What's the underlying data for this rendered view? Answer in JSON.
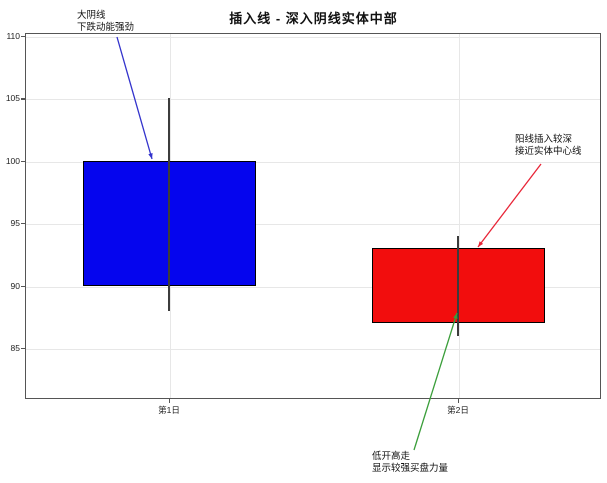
{
  "title": "插入线 - 深入阴线实体中部",
  "chart_data": {
    "type": "candlestick",
    "title": "插入线 - 深入阴线实体中部",
    "categories": [
      "第1日",
      "第2日"
    ],
    "candles": [
      {
        "label": "第1日",
        "open": 100,
        "close": 90,
        "high": 105,
        "low": 88,
        "direction": "bearish",
        "fill": "#0505ee"
      },
      {
        "label": "第2日",
        "open": 87,
        "close": 93,
        "high": 94,
        "low": 86,
        "direction": "bullish",
        "fill": "#f20d0d"
      }
    ],
    "ylim": [
      85,
      110
    ],
    "yticks": [
      110,
      105,
      100,
      95,
      90,
      85
    ],
    "grid": true,
    "legend": "none",
    "annotations": [
      {
        "id": "day1-bearish-note",
        "lines": [
          "大阴线",
          "下跌动能强劲"
        ],
        "line_color": "#3333cc",
        "points_to": "day1-candle-top"
      },
      {
        "id": "day2-pierce-note",
        "lines": [
          "阳线插入较深",
          "接近实体中心线"
        ],
        "line_color": "#e82436",
        "points_to": "day2-candle-top"
      },
      {
        "id": "day2-open-note",
        "lines": [
          "低开高走",
          "显示较强买盘力量"
        ],
        "line_color": "#3a9e3a",
        "points_to": "day2-candle-bottom"
      }
    ]
  },
  "colors": {
    "bearish_fill": "#0505ee",
    "bullish_fill": "#f20d0d",
    "grid": "#e7e7e7",
    "frame": "#555555",
    "wick": "#3c3c3c"
  }
}
